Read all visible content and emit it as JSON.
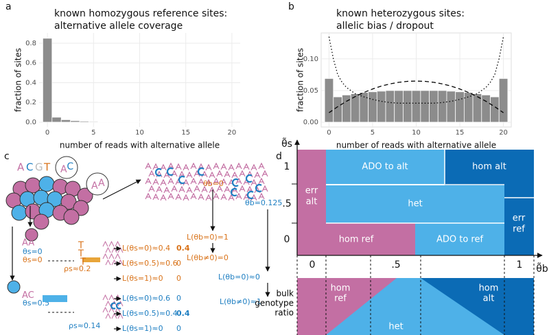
{
  "panel_labels": [
    "a",
    "b",
    "c",
    "d"
  ],
  "chart_data": [
    {
      "type": "histogram",
      "title": [
        "known homozygous reference sites:",
        " alternative allele coverage"
      ],
      "xlabel": "number of reads with alternative allele",
      "ylabel": "fraction of sites",
      "bins": [
        -0.5,
        0.5,
        1.5,
        2.5,
        3.5,
        4.5,
        5.5,
        6.5,
        7.5,
        8.5,
        9.5,
        10.5,
        11.5,
        12.5,
        13.5,
        14.5,
        15.5,
        16.5,
        17.5,
        18.5,
        19.5,
        20.5
      ],
      "values": [
        0.85,
        0.05,
        0.025,
        0.015,
        0.01,
        0.007,
        0.005,
        0.004,
        0.003,
        0.002,
        0.002,
        0.001,
        0.001,
        0.001,
        0.001,
        0,
        0,
        0,
        0,
        0,
        0
      ],
      "color": "#8c8c8c",
      "xlim": [
        -0.9,
        20.9
      ],
      "ylim": [
        -0.049,
        0.904
      ],
      "xticks": [
        0,
        5,
        10,
        15,
        20
      ],
      "yticks": [
        {
          "value": 0,
          "label": "0.0"
        },
        0.2,
        0.4,
        0.6,
        0.8
      ],
      "grid": true
    },
    {
      "type": "histogram",
      "title": [
        "known heterozygous sites:",
        " allelic bias / dropout"
      ],
      "xlabel": "number of reads with alternative allele",
      "ylabel": "fraction of sites",
      "bins": [
        -0.5,
        0.5,
        1.5,
        2.5,
        3.5,
        4.5,
        5.5,
        6.5,
        7.5,
        8.5,
        9.5,
        10.5,
        11.5,
        12.5,
        13.5,
        14.5,
        15.5,
        16.5,
        17.5,
        18.5,
        19.5,
        20.5
      ],
      "values": [
        0.069,
        0.04,
        0.043,
        0.045,
        0.047,
        0.048,
        0.049,
        0.05,
        0.05,
        0.05,
        0.05,
        0.05,
        0.05,
        0.05,
        0.049,
        0.048,
        0.047,
        0.045,
        0.043,
        0.04,
        0.069
      ],
      "color": "#8c8c8c",
      "series": [
        {
          "style": "dashed",
          "color": "#000000",
          "x": [
            0,
            1,
            2,
            3,
            4,
            5,
            6,
            7,
            8,
            9,
            10,
            11,
            12,
            13,
            14,
            15,
            16,
            17,
            18,
            19,
            20
          ],
          "values": [
            0.015,
            0.0245,
            0.033,
            0.0405,
            0.047,
            0.0525,
            0.057,
            0.0605,
            0.063,
            0.0645,
            0.065,
            0.0645,
            0.063,
            0.0605,
            0.057,
            0.0525,
            0.047,
            0.0405,
            0.033,
            0.0245,
            0.015
          ]
        },
        {
          "style": "dotted",
          "color": "#000000",
          "x": [
            0,
            0.5,
            1,
            1.5,
            2,
            3,
            4,
            5,
            6,
            7,
            8,
            9,
            10,
            11,
            12,
            13,
            14,
            15,
            16,
            17,
            18,
            18.5,
            19,
            19.5,
            20
          ],
          "values": [
            0.135,
            0.1,
            0.075,
            0.063,
            0.055,
            0.045,
            0.04,
            0.036,
            0.033,
            0.031,
            0.03,
            0.03,
            0.03,
            0.03,
            0.03,
            0.031,
            0.033,
            0.036,
            0.04,
            0.045,
            0.055,
            0.063,
            0.075,
            0.1,
            0.135
          ]
        }
      ],
      "xlim": [
        -0.9,
        20.9
      ],
      "ylim": [
        -0.0076,
        0.141
      ],
      "xticks": [
        0,
        5,
        10,
        15,
        20
      ],
      "yticks": [
        {
          "value": 0,
          "label": "0.00"
        },
        0.05,
        {
          "value": 0.1,
          "label": "0.10"
        }
      ],
      "grid": true
    }
  ],
  "panel_c": {
    "letters": [
      "A",
      "C",
      "G",
      "T"
    ],
    "bubbles": [
      [
        "A",
        "C"
      ],
      [
        "A",
        "A"
      ]
    ],
    "pile_letters": [
      "T",
      "T",
      "T"
    ],
    "theta_b0": "θb=0",
    "theta_b125": "θb=0.125",
    "lb_ref": [
      "L(θb=0)=1",
      "L(θb≠0)=0"
    ],
    "lb_alt": [
      "L(θb=0)≈0",
      "L(θb≠0)≈1"
    ],
    "cell1": {
      "genotype": "AA",
      "theta_s_blue": "θs=0",
      "theta_s_orange": "θs=0",
      "rho": "ρs≈0.2"
    },
    "cell1_likelihoods": [
      [
        "L(θs=0)≈0.4",
        "0.4"
      ],
      [
        "L(θs=0.5)≈0.6",
        "0"
      ],
      [
        "L(θs=1)≈0",
        "0"
      ]
    ],
    "cell2": {
      "genotype": "AC",
      "theta_s": "θs=0.5",
      "rho": "ρs≈0.14"
    },
    "cell2_likelihoods": [
      [
        "L(θs=0)≈0.6",
        "0"
      ],
      [
        "L(θs=0.5)≈0.4",
        "0.4"
      ],
      [
        "L(θs=1)≈0",
        "0"
      ]
    ]
  },
  "panel_d": {
    "y_axis_label": "θ̃s",
    "x_axis_label": "θ̃b",
    "y_ticks": [
      "1",
      ".5",
      "0"
    ],
    "x_ticks": [
      "0",
      ".5",
      "1"
    ],
    "regions": {
      "err_alt": [
        "err",
        "alt"
      ],
      "ado_alt": "ADO to alt",
      "hom_alt": "hom alt",
      "het": "het",
      "err_ref": [
        "err",
        "ref"
      ],
      "hom_ref": "hom ref",
      "ado_ref": "ADO to ref"
    },
    "bulk_label": [
      "bulk",
      "genotype",
      "ratio"
    ],
    "bulk_regions": {
      "hom_ref": [
        "hom",
        "ref"
      ],
      "het": "het",
      "hom_alt": [
        "hom",
        "alt"
      ]
    }
  }
}
